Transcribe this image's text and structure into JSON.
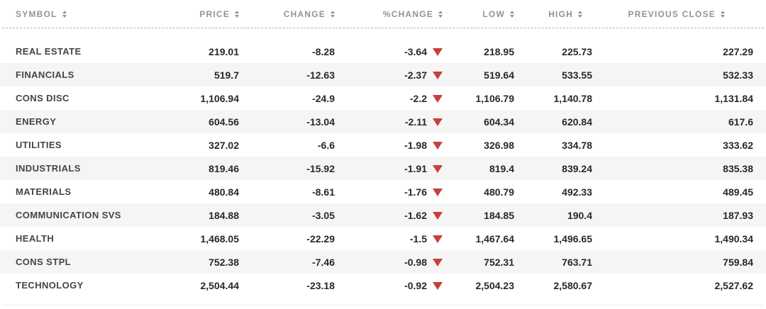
{
  "table": {
    "columns": [
      {
        "key": "symbol",
        "label": "SYMBOL"
      },
      {
        "key": "price",
        "label": "PRICE"
      },
      {
        "key": "change",
        "label": "CHANGE"
      },
      {
        "key": "pct_change",
        "label": "%CHANGE"
      },
      {
        "key": "low",
        "label": "LOW"
      },
      {
        "key": "high",
        "label": "HIGH"
      },
      {
        "key": "prev_close",
        "label": "PREVIOUS CLOSE"
      }
    ],
    "rows": [
      {
        "symbol": "REAL ESTATE",
        "price": "219.01",
        "change": "-8.28",
        "pct_change": "-3.64",
        "direction": "down",
        "low": "218.95",
        "high": "225.73",
        "prev_close": "227.29"
      },
      {
        "symbol": "FINANCIALS",
        "price": "519.7",
        "change": "-12.63",
        "pct_change": "-2.37",
        "direction": "down",
        "low": "519.64",
        "high": "533.55",
        "prev_close": "532.33"
      },
      {
        "symbol": "CONS DISC",
        "price": "1,106.94",
        "change": "-24.9",
        "pct_change": "-2.2",
        "direction": "down",
        "low": "1,106.79",
        "high": "1,140.78",
        "prev_close": "1,131.84"
      },
      {
        "symbol": "ENERGY",
        "price": "604.56",
        "change": "-13.04",
        "pct_change": "-2.11",
        "direction": "down",
        "low": "604.34",
        "high": "620.84",
        "prev_close": "617.6"
      },
      {
        "symbol": "UTILITIES",
        "price": "327.02",
        "change": "-6.6",
        "pct_change": "-1.98",
        "direction": "down",
        "low": "326.98",
        "high": "334.78",
        "prev_close": "333.62"
      },
      {
        "symbol": "INDUSTRIALS",
        "price": "819.46",
        "change": "-15.92",
        "pct_change": "-1.91",
        "direction": "down",
        "low": "819.4",
        "high": "839.24",
        "prev_close": "835.38"
      },
      {
        "symbol": "MATERIALS",
        "price": "480.84",
        "change": "-8.61",
        "pct_change": "-1.76",
        "direction": "down",
        "low": "480.79",
        "high": "492.33",
        "prev_close": "489.45"
      },
      {
        "symbol": "COMMUNICATION SVS",
        "price": "184.88",
        "change": "-3.05",
        "pct_change": "-1.62",
        "direction": "down",
        "low": "184.85",
        "high": "190.4",
        "prev_close": "187.93"
      },
      {
        "symbol": "HEALTH",
        "price": "1,468.05",
        "change": "-22.29",
        "pct_change": "-1.5",
        "direction": "down",
        "low": "1,467.64",
        "high": "1,496.65",
        "prev_close": "1,490.34"
      },
      {
        "symbol": "CONS STPL",
        "price": "752.38",
        "change": "-7.46",
        "pct_change": "-0.98",
        "direction": "down",
        "low": "752.31",
        "high": "763.71",
        "prev_close": "759.84"
      },
      {
        "symbol": "TECHNOLOGY",
        "price": "2,504.44",
        "change": "-23.18",
        "pct_change": "-0.92",
        "direction": "down",
        "low": "2,504.23",
        "high": "2,580.67",
        "prev_close": "2,527.62"
      }
    ]
  },
  "icons": {
    "sort": "sort-arrows",
    "down_triangle": "down-triangle"
  },
  "colors": {
    "negative": "#cb3a3c",
    "triangle": "#c6403f",
    "header_text": "#8f939b",
    "row_alt_bg": "#f5f5f6",
    "number_text": "#26282c",
    "symbol_text": "#42454c"
  }
}
